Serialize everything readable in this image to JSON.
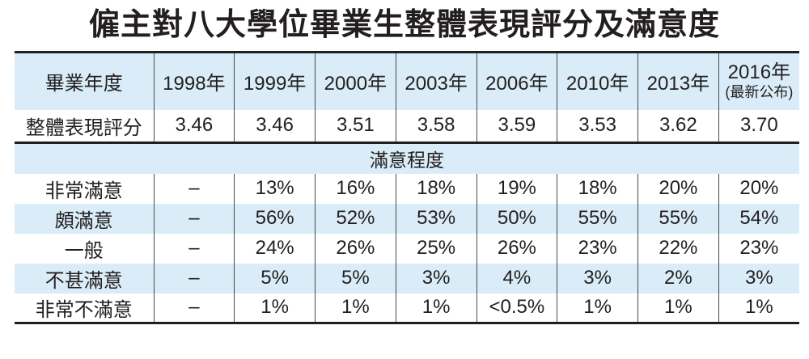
{
  "title": "僱主對八大學位畢業生整體表現評分及滿意度",
  "table": {
    "header": {
      "row_label": "畢業年度",
      "years": [
        "1998年",
        "1999年",
        "2000年",
        "2003年",
        "2006年",
        "2010年",
        "2013年"
      ],
      "last_year": "2016年",
      "last_year_note": "(最新公布)"
    },
    "score_row": {
      "label": "整體表現評分",
      "values": [
        "3.46",
        "3.46",
        "3.51",
        "3.58",
        "3.59",
        "3.53",
        "3.62",
        "3.70"
      ]
    },
    "section_label": "滿意程度",
    "satisfaction_rows": [
      {
        "label": "非常滿意",
        "values": [
          "–",
          "13%",
          "16%",
          "18%",
          "19%",
          "18%",
          "20%",
          "20%"
        ]
      },
      {
        "label": "頗滿意",
        "values": [
          "–",
          "56%",
          "52%",
          "53%",
          "50%",
          "55%",
          "55%",
          "54%"
        ]
      },
      {
        "label": "一般",
        "values": [
          "–",
          "24%",
          "26%",
          "25%",
          "26%",
          "23%",
          "22%",
          "23%"
        ]
      },
      {
        "label": "不甚滿意",
        "values": [
          "–",
          "5%",
          "5%",
          "3%",
          "4%",
          "3%",
          "2%",
          "3%"
        ]
      },
      {
        "label": "非常不滿意",
        "values": [
          "–",
          "1%",
          "1%",
          "1%",
          "<0.5%",
          "1%",
          "1%",
          "1%"
        ]
      }
    ]
  },
  "colors": {
    "band_blue": "#d9ecf7",
    "rule_dark": "#231f20",
    "divider_gray": "#4a4a4a",
    "text": "#231f20"
  },
  "chart_data": {
    "type": "table",
    "title": "僱主對八大學位畢業生整體表現評分及滿意度",
    "columns": [
      "畢業年度",
      "1998年",
      "1999年",
      "2000年",
      "2003年",
      "2006年",
      "2010年",
      "2013年",
      "2016年(最新公布)"
    ],
    "section_header": "滿意程度",
    "rows": [
      [
        "整體表現評分",
        "3.46",
        "3.46",
        "3.51",
        "3.58",
        "3.59",
        "3.53",
        "3.62",
        "3.70"
      ],
      [
        "非常滿意",
        "–",
        "13%",
        "16%",
        "18%",
        "19%",
        "18%",
        "20%",
        "20%"
      ],
      [
        "頗滿意",
        "–",
        "56%",
        "52%",
        "53%",
        "50%",
        "55%",
        "55%",
        "54%"
      ],
      [
        "一般",
        "–",
        "24%",
        "26%",
        "25%",
        "26%",
        "23%",
        "22%",
        "23%"
      ],
      [
        "不甚滿意",
        "–",
        "5%",
        "5%",
        "3%",
        "4%",
        "3%",
        "2%",
        "3%"
      ],
      [
        "非常不滿意",
        "–",
        "1%",
        "1%",
        "1%",
        "<0.5%",
        "1%",
        "1%",
        "1%"
      ]
    ]
  }
}
